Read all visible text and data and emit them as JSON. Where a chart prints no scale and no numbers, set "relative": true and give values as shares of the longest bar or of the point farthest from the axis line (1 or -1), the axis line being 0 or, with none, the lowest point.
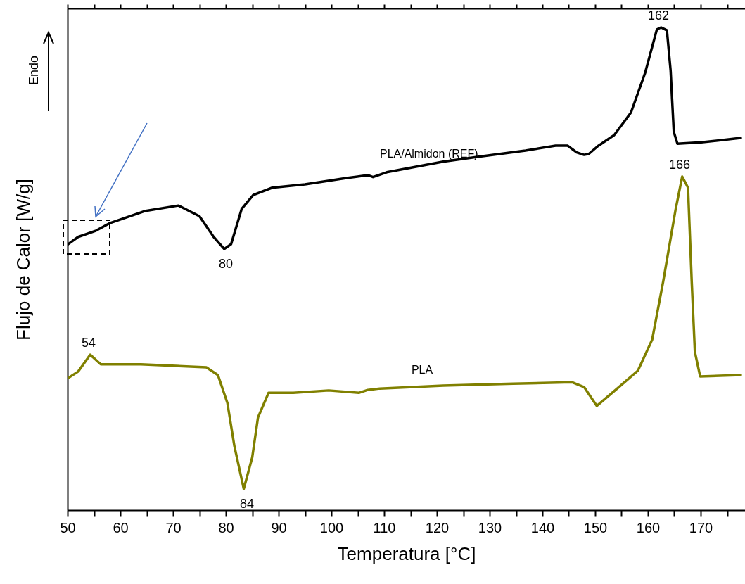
{
  "chart_data": {
    "type": "line",
    "relative": true,
    "xlabel": "Temperatura [°C]",
    "ylabel": "Flujo de Calor [W/g]",
    "xlim": [
      50,
      178.4
    ],
    "xticks": [
      50,
      {
        "value": 55,
        "label": null
      },
      60,
      {
        "value": 65,
        "label": null
      },
      70,
      {
        "value": 75,
        "label": null
      },
      80,
      {
        "value": 85,
        "label": null
      },
      90,
      {
        "value": 95,
        "label": null
      },
      100,
      {
        "value": 105,
        "label": null
      },
      110,
      {
        "value": 115,
        "label": null
      },
      120,
      {
        "value": 125,
        "label": null
      },
      130,
      {
        "value": 135,
        "label": null
      },
      140,
      {
        "value": 145,
        "label": null
      },
      150,
      {
        "value": 155,
        "label": null
      },
      160,
      {
        "value": 165,
        "label": null
      },
      170,
      {
        "value": 175,
        "label": null
      }
    ],
    "series": [
      {
        "name": "PLA/Almidon (REF)",
        "color": "#000000",
        "x": [
          50,
          52,
          55.4,
          58.1,
          64.8,
          71,
          75,
          77.7,
          79.7,
          81,
          83,
          85.2,
          88.8,
          95,
          102.9,
          106.9,
          107.9,
          110.5,
          121.2,
          127.9,
          136.8,
          142.5,
          144.8,
          146.5,
          147.9,
          148.8,
          150.5,
          153.6,
          156.8,
          159.5,
          161.7,
          162.5,
          163.6,
          164.3,
          164.9,
          165.6,
          170.1,
          177.6
        ],
        "values": [
          0.55,
          0.566,
          0.579,
          0.595,
          0.62,
          0.631,
          0.609,
          0.566,
          0.541,
          0.551,
          0.624,
          0.653,
          0.668,
          0.675,
          0.688,
          0.694,
          0.69,
          0.7,
          0.722,
          0.732,
          0.745,
          0.755,
          0.755,
          0.741,
          0.736,
          0.738,
          0.754,
          0.777,
          0.824,
          0.907,
          0.996,
          1,
          0.994,
          0.911,
          0.784,
          0.759,
          0.762,
          0.771
        ]
      },
      {
        "name": "PLA",
        "color": "#808000",
        "x": [
          50,
          52,
          54.3,
          56.3,
          63.9,
          76.3,
          78.5,
          80.3,
          81.6,
          83.4,
          85,
          86.1,
          88.1,
          92.8,
          99.5,
          105.2,
          106.9,
          109.2,
          121.2,
          134.5,
          145.6,
          147.9,
          150.3,
          154.5,
          158.1,
          160.8,
          162.9,
          165.2,
          166.5,
          167.6,
          168.3,
          168.9,
          169.9,
          177.6
        ],
        "values": [
          0.273,
          0.287,
          0.322,
          0.302,
          0.302,
          0.296,
          0.28,
          0.222,
          0.134,
          0.044,
          0.109,
          0.192,
          0.243,
          0.243,
          0.248,
          0.243,
          0.249,
          0.252,
          0.258,
          0.262,
          0.265,
          0.255,
          0.216,
          0.255,
          0.289,
          0.353,
          0.474,
          0.62,
          0.691,
          0.668,
          0.474,
          0.328,
          0.277,
          0.28
        ]
      }
    ],
    "annotations": [
      "Endo",
      {
        "text": "162",
        "x": 162,
        "y": 1
      },
      {
        "text": "80",
        "x": 80,
        "y": 0.541
      },
      {
        "text": "166",
        "x": 166,
        "y": 0.691
      },
      {
        "text": "54",
        "x": 54,
        "y": 0.322
      },
      {
        "text": "84",
        "x": 84,
        "y": 0.044
      }
    ],
    "marker": "none",
    "line_style": "solid",
    "grid": false
  }
}
